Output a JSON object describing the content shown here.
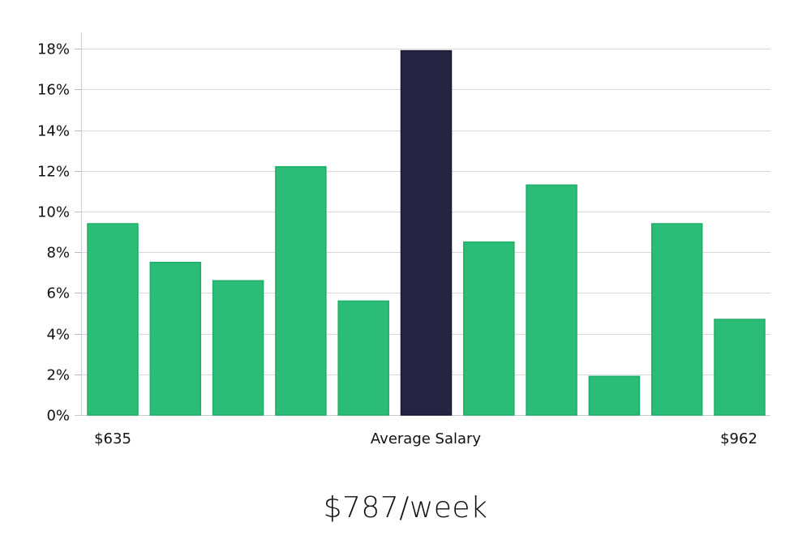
{
  "chart_data": {
    "type": "bar",
    "title": "",
    "ylabel": "",
    "y_ticks": [
      "0%",
      "2%",
      "4%",
      "6%",
      "8%",
      "10%",
      "12%",
      "14%",
      "16%",
      "18%"
    ],
    "ylim": [
      0,
      18.8
    ],
    "x_labels": {
      "left": "$635",
      "center": "Average Salary",
      "right": "$962"
    },
    "values": [
      9.4,
      7.5,
      6.6,
      12.2,
      5.6,
      17.9,
      8.5,
      11.3,
      1.9,
      9.4,
      4.7
    ],
    "highlight_index": 5,
    "colors": {
      "bar": "#2bbd77",
      "bar_border": "#1fae67",
      "highlight": "#272343",
      "highlight_border": "#1a1733"
    },
    "grid": true,
    "legend": "none"
  },
  "footer": {
    "salary": "$787/week"
  }
}
